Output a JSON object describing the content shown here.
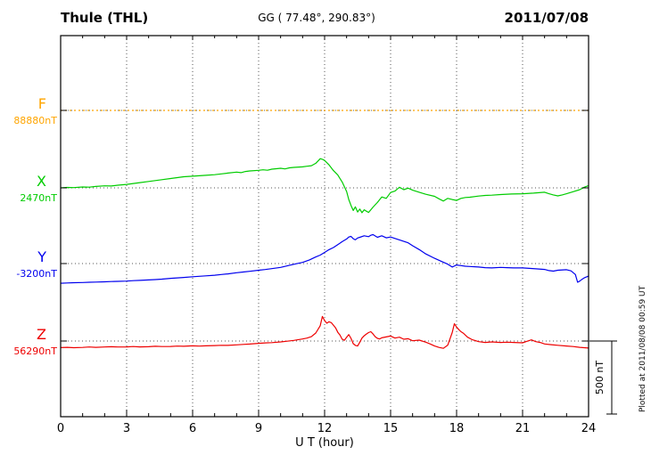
{
  "header": {
    "station": "Thule (THL)",
    "coords": "GG ( 77.48°, 290.83°)",
    "date": "2011/07/08"
  },
  "side": {
    "plotted_at": "Plotted at 2011/08/08 00:59 UT",
    "scale_label": "500 nT"
  },
  "chart_data": {
    "type": "line",
    "title": "Thule (THL) magnetogram 2011/07/08",
    "xlabel": "U T (hour)",
    "ylabel": "",
    "x_range": [
      0,
      24
    ],
    "x_ticks": [
      0,
      3,
      6,
      9,
      12,
      15,
      18,
      21,
      24
    ],
    "x_minor_step": 1,
    "scale_bar_nT": 500,
    "grid": "dotted",
    "values_unit": "nT offset from each component baseline",
    "series": [
      {
        "id": "F",
        "label": "F",
        "baseline_label": "88880nT",
        "color": "#FFA500",
        "dashed": true,
        "points": [
          [
            0,
            0
          ],
          [
            24,
            0
          ]
        ]
      },
      {
        "id": "X",
        "label": "X",
        "baseline_label": "2470nT",
        "color": "#00CC00",
        "dashed": false,
        "points": [
          [
            0,
            0
          ],
          [
            0.3,
            3
          ],
          [
            0.6,
            2
          ],
          [
            1,
            6
          ],
          [
            1.3,
            5
          ],
          [
            1.6,
            10
          ],
          [
            2,
            14
          ],
          [
            2.3,
            13
          ],
          [
            2.6,
            18
          ],
          [
            3,
            24
          ],
          [
            3.3,
            30
          ],
          [
            3.6,
            36
          ],
          [
            4,
            44
          ],
          [
            4.3,
            50
          ],
          [
            4.6,
            56
          ],
          [
            5,
            64
          ],
          [
            5.3,
            70
          ],
          [
            5.6,
            76
          ],
          [
            6,
            80
          ],
          [
            6.3,
            83
          ],
          [
            6.6,
            86
          ],
          [
            7,
            90
          ],
          [
            7.3,
            96
          ],
          [
            7.6,
            101
          ],
          [
            8,
            108
          ],
          [
            8.2,
            104
          ],
          [
            8.4,
            112
          ],
          [
            8.6,
            116
          ],
          [
            9,
            120
          ],
          [
            9.2,
            124
          ],
          [
            9.4,
            121
          ],
          [
            9.6,
            128
          ],
          [
            10,
            134
          ],
          [
            10.2,
            130
          ],
          [
            10.4,
            137
          ],
          [
            10.6,
            140
          ],
          [
            11,
            144
          ],
          [
            11.2,
            148
          ],
          [
            11.4,
            152
          ],
          [
            11.6,
            168
          ],
          [
            11.8,
            200
          ],
          [
            11.9,
            196
          ],
          [
            12,
            188
          ],
          [
            12.2,
            158
          ],
          [
            12.4,
            118
          ],
          [
            12.6,
            88
          ],
          [
            12.8,
            40
          ],
          [
            13,
            -25
          ],
          [
            13.1,
            -80
          ],
          [
            13.2,
            -120
          ],
          [
            13.3,
            -155
          ],
          [
            13.4,
            -130
          ],
          [
            13.5,
            -165
          ],
          [
            13.6,
            -145
          ],
          [
            13.7,
            -170
          ],
          [
            13.8,
            -150
          ],
          [
            13.9,
            -160
          ],
          [
            14,
            -168
          ],
          [
            14.1,
            -150
          ],
          [
            14.2,
            -132
          ],
          [
            14.4,
            -100
          ],
          [
            14.6,
            -62
          ],
          [
            14.8,
            -72
          ],
          [
            15,
            -32
          ],
          [
            15.2,
            -22
          ],
          [
            15.4,
            4
          ],
          [
            15.6,
            -12
          ],
          [
            15.8,
            -2
          ],
          [
            16,
            -16
          ],
          [
            16.3,
            -30
          ],
          [
            16.6,
            -44
          ],
          [
            17,
            -58
          ],
          [
            17.2,
            -75
          ],
          [
            17.4,
            -90
          ],
          [
            17.6,
            -72
          ],
          [
            17.8,
            -80
          ],
          [
            18,
            -86
          ],
          [
            18.2,
            -72
          ],
          [
            18.4,
            -66
          ],
          [
            18.6,
            -64
          ],
          [
            19,
            -56
          ],
          [
            19.3,
            -52
          ],
          [
            19.6,
            -50
          ],
          [
            20,
            -46
          ],
          [
            20.5,
            -42
          ],
          [
            21,
            -40
          ],
          [
            21.5,
            -36
          ],
          [
            22,
            -30
          ],
          [
            22.2,
            -40
          ],
          [
            22.4,
            -48
          ],
          [
            22.6,
            -55
          ],
          [
            22.8,
            -48
          ],
          [
            23,
            -40
          ],
          [
            23.3,
            -26
          ],
          [
            23.6,
            -12
          ],
          [
            23.8,
            4
          ],
          [
            24,
            16
          ]
        ]
      },
      {
        "id": "Y",
        "label": "Y",
        "baseline_label": "-3200nT",
        "color": "#0000EE",
        "dashed": false,
        "points": [
          [
            0,
            -135
          ],
          [
            0.3,
            -133
          ],
          [
            0.6,
            -131
          ],
          [
            1,
            -130
          ],
          [
            1.3,
            -128
          ],
          [
            1.6,
            -127
          ],
          [
            2,
            -125
          ],
          [
            2.3,
            -123
          ],
          [
            2.6,
            -122
          ],
          [
            3,
            -120
          ],
          [
            3.3,
            -117
          ],
          [
            3.6,
            -115
          ],
          [
            4,
            -112
          ],
          [
            4.3,
            -110
          ],
          [
            4.6,
            -107
          ],
          [
            5,
            -101
          ],
          [
            5.3,
            -98
          ],
          [
            5.6,
            -95
          ],
          [
            6,
            -90
          ],
          [
            6.3,
            -87
          ],
          [
            6.6,
            -84
          ],
          [
            7,
            -80
          ],
          [
            7.3,
            -75
          ],
          [
            7.6,
            -71
          ],
          [
            8,
            -63
          ],
          [
            8.3,
            -58
          ],
          [
            8.6,
            -53
          ],
          [
            9,
            -46
          ],
          [
            9.3,
            -41
          ],
          [
            9.6,
            -35
          ],
          [
            10,
            -26
          ],
          [
            10.3,
            -16
          ],
          [
            10.6,
            -5
          ],
          [
            11,
            8
          ],
          [
            11.3,
            24
          ],
          [
            11.6,
            45
          ],
          [
            11.8,
            58
          ],
          [
            12,
            76
          ],
          [
            12.2,
            95
          ],
          [
            12.4,
            110
          ],
          [
            12.6,
            130
          ],
          [
            12.8,
            150
          ],
          [
            13,
            168
          ],
          [
            13.1,
            182
          ],
          [
            13.2,
            186
          ],
          [
            13.3,
            170
          ],
          [
            13.4,
            163
          ],
          [
            13.5,
            175
          ],
          [
            13.6,
            180
          ],
          [
            13.8,
            190
          ],
          [
            14,
            184
          ],
          [
            14.1,
            194
          ],
          [
            14.2,
            198
          ],
          [
            14.4,
            180
          ],
          [
            14.6,
            190
          ],
          [
            14.8,
            176
          ],
          [
            15,
            182
          ],
          [
            15.2,
            172
          ],
          [
            15.4,
            162
          ],
          [
            15.6,
            152
          ],
          [
            15.8,
            142
          ],
          [
            16,
            122
          ],
          [
            16.3,
            96
          ],
          [
            16.6,
            66
          ],
          [
            17,
            36
          ],
          [
            17.3,
            16
          ],
          [
            17.6,
            -4
          ],
          [
            17.8,
            -24
          ],
          [
            18,
            -10
          ],
          [
            18.2,
            -14
          ],
          [
            18.4,
            -18
          ],
          [
            18.6,
            -20
          ],
          [
            19,
            -24
          ],
          [
            19.3,
            -28
          ],
          [
            19.6,
            -30
          ],
          [
            20,
            -26
          ],
          [
            20.3,
            -28
          ],
          [
            20.6,
            -30
          ],
          [
            21,
            -30
          ],
          [
            21.3,
            -33
          ],
          [
            21.6,
            -36
          ],
          [
            22,
            -40
          ],
          [
            22.2,
            -48
          ],
          [
            22.4,
            -52
          ],
          [
            22.6,
            -46
          ],
          [
            23,
            -42
          ],
          [
            23.2,
            -50
          ],
          [
            23.4,
            -75
          ],
          [
            23.5,
            -128
          ],
          [
            23.6,
            -120
          ],
          [
            23.7,
            -108
          ],
          [
            23.8,
            -98
          ],
          [
            24,
            -86
          ]
        ]
      },
      {
        "id": "Z",
        "label": "Z",
        "baseline_label": "56290nT",
        "color": "#EE0000",
        "dashed": false,
        "points": [
          [
            0,
            -45
          ],
          [
            0.3,
            -43
          ],
          [
            0.6,
            -46
          ],
          [
            1,
            -44
          ],
          [
            1.3,
            -41
          ],
          [
            1.6,
            -43
          ],
          [
            2,
            -41
          ],
          [
            2.3,
            -39
          ],
          [
            2.6,
            -41
          ],
          [
            3,
            -40
          ],
          [
            3.3,
            -38
          ],
          [
            3.6,
            -40
          ],
          [
            4,
            -39
          ],
          [
            4.3,
            -36
          ],
          [
            4.6,
            -38
          ],
          [
            5,
            -37
          ],
          [
            5.3,
            -35
          ],
          [
            5.6,
            -36
          ],
          [
            6,
            -33
          ],
          [
            6.3,
            -35
          ],
          [
            6.6,
            -33
          ],
          [
            7,
            -31
          ],
          [
            7.3,
            -29
          ],
          [
            7.6,
            -30
          ],
          [
            8,
            -26
          ],
          [
            8.3,
            -23
          ],
          [
            8.6,
            -21
          ],
          [
            9,
            -16
          ],
          [
            9.3,
            -13
          ],
          [
            9.6,
            -11
          ],
          [
            10,
            -6
          ],
          [
            10.3,
            -1
          ],
          [
            10.6,
            4
          ],
          [
            11,
            14
          ],
          [
            11.2,
            20
          ],
          [
            11.4,
            30
          ],
          [
            11.6,
            55
          ],
          [
            11.8,
            105
          ],
          [
            11.9,
            168
          ],
          [
            12,
            140
          ],
          [
            12.1,
            122
          ],
          [
            12.2,
            132
          ],
          [
            12.3,
            126
          ],
          [
            12.4,
            108
          ],
          [
            12.5,
            90
          ],
          [
            12.6,
            60
          ],
          [
            12.7,
            40
          ],
          [
            12.8,
            12
          ],
          [
            12.9,
            5
          ],
          [
            13,
            26
          ],
          [
            13.1,
            44
          ],
          [
            13.2,
            18
          ],
          [
            13.3,
            -18
          ],
          [
            13.4,
            -30
          ],
          [
            13.5,
            -34
          ],
          [
            13.6,
            -8
          ],
          [
            13.7,
            20
          ],
          [
            13.8,
            36
          ],
          [
            13.9,
            48
          ],
          [
            14,
            58
          ],
          [
            14.1,
            64
          ],
          [
            14.2,
            48
          ],
          [
            14.3,
            30
          ],
          [
            14.4,
            18
          ],
          [
            14.5,
            14
          ],
          [
            14.6,
            22
          ],
          [
            14.8,
            28
          ],
          [
            15,
            34
          ],
          [
            15.2,
            20
          ],
          [
            15.4,
            26
          ],
          [
            15.6,
            12
          ],
          [
            15.8,
            16
          ],
          [
            16,
            2
          ],
          [
            16.3,
            6
          ],
          [
            16.6,
            -8
          ],
          [
            16.8,
            -20
          ],
          [
            17,
            -34
          ],
          [
            17.2,
            -44
          ],
          [
            17.4,
            -50
          ],
          [
            17.6,
            -28
          ],
          [
            17.8,
            58
          ],
          [
            17.9,
            118
          ],
          [
            18,
            96
          ],
          [
            18.1,
            78
          ],
          [
            18.2,
            64
          ],
          [
            18.3,
            54
          ],
          [
            18.5,
            26
          ],
          [
            18.7,
            10
          ],
          [
            19,
            -4
          ],
          [
            19.3,
            -10
          ],
          [
            19.6,
            -6
          ],
          [
            20,
            -10
          ],
          [
            20.3,
            -8
          ],
          [
            20.6,
            -10
          ],
          [
            21,
            -12
          ],
          [
            21.2,
            -2
          ],
          [
            21.4,
            8
          ],
          [
            21.6,
            -4
          ],
          [
            21.8,
            -10
          ],
          [
            22,
            -20
          ],
          [
            22.3,
            -25
          ],
          [
            22.6,
            -29
          ],
          [
            23,
            -34
          ],
          [
            23.3,
            -38
          ],
          [
            23.6,
            -43
          ],
          [
            24,
            -48
          ]
        ]
      }
    ]
  }
}
